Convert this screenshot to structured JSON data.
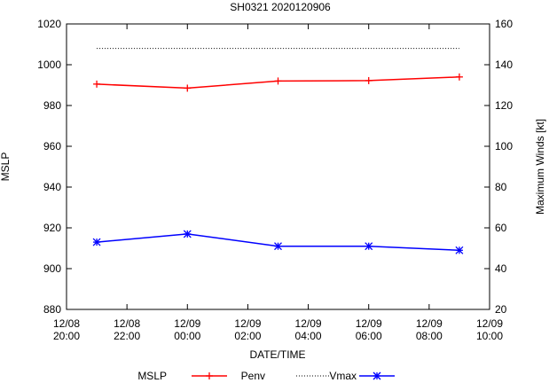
{
  "chart_data": {
    "type": "line",
    "title": "SH0321 2020120906",
    "xlabel": "DATE/TIME",
    "ylabel_left": "MSLP",
    "ylabel_right": "Maximum Winds [kt]",
    "x_range_hours": [
      20,
      34
    ],
    "x_ticks": [
      {
        "hour": 20,
        "date": "12/08",
        "time": "20:00"
      },
      {
        "hour": 22,
        "date": "12/08",
        "time": "22:00"
      },
      {
        "hour": 24,
        "date": "12/09",
        "time": "00:00"
      },
      {
        "hour": 26,
        "date": "12/09",
        "time": "02:00"
      },
      {
        "hour": 28,
        "date": "12/09",
        "time": "04:00"
      },
      {
        "hour": 30,
        "date": "12/09",
        "time": "06:00"
      },
      {
        "hour": 32,
        "date": "12/09",
        "time": "08:00"
      },
      {
        "hour": 34,
        "date": "12/09",
        "time": "10:00"
      }
    ],
    "y_left": {
      "min": 880,
      "max": 1020,
      "ticks": [
        880,
        900,
        920,
        940,
        960,
        980,
        1000,
        1020
      ]
    },
    "y_right": {
      "min": 20,
      "max": 160,
      "ticks": [
        20,
        40,
        60,
        80,
        100,
        120,
        140,
        160
      ]
    },
    "grid": false,
    "legend_position": "bottom",
    "series": [
      {
        "name": "MSLP",
        "axis": "left",
        "color": "#ff0000",
        "marker": "plus",
        "style": "solid",
        "x": [
          21,
          24,
          27,
          30,
          33
        ],
        "values": [
          990.5,
          988.5,
          992,
          992.2,
          994
        ]
      },
      {
        "name": "Penv",
        "axis": "left",
        "color": "#000000",
        "marker": "none",
        "style": "dotted",
        "x": [
          21,
          33
        ],
        "values": [
          1008,
          1008
        ]
      },
      {
        "name": "Vmax",
        "axis": "right",
        "color": "#0000ff",
        "marker": "star",
        "style": "solid",
        "x": [
          21,
          24,
          27,
          30,
          33
        ],
        "values": [
          53,
          57,
          51,
          51,
          49
        ]
      }
    ]
  }
}
